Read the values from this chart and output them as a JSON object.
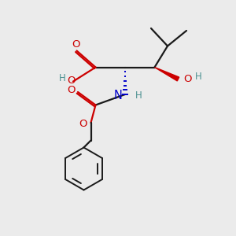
{
  "bg_color": "#ebebeb",
  "bond_color": "#1a1a1a",
  "oxygen_color": "#cc0000",
  "nitrogen_color": "#0000cc",
  "teal_color": "#4a9090",
  "fig_size": [
    3.0,
    3.0
  ],
  "dpi": 100,
  "xlim": [
    0,
    10
  ],
  "ylim": [
    0,
    10
  ]
}
